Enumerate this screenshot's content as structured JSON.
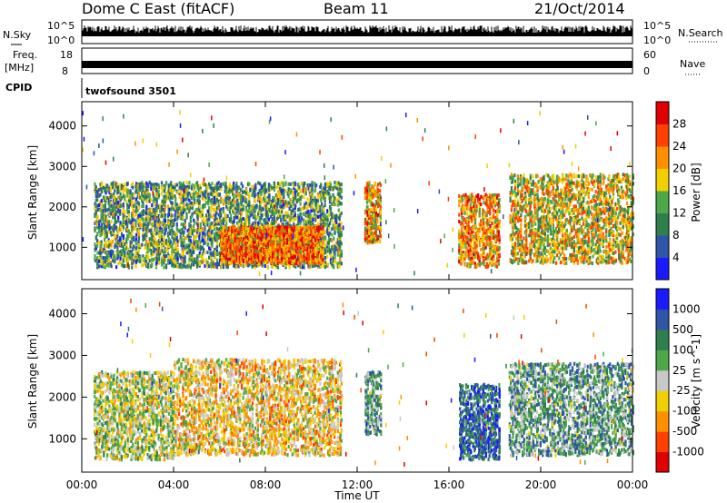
{
  "header": {
    "station": "Dome C East (fitACF)",
    "beam": "Beam 11",
    "date": "21/Oct/2014"
  },
  "strip_labels": {
    "nsky": "N.Sky",
    "nsearch": "N.Search",
    "freq_line1": "Freq.",
    "freq_line2": "[MHz]",
    "nave": "Nave",
    "cpid": "CPID",
    "cpid_value": "twofsound 3501"
  },
  "strip_ticks": {
    "nsky_left_top": "10^5",
    "nsky_left_bottom": "10^0",
    "nsky_right_top": "10^5",
    "nsky_right_bottom": "10^0",
    "freq_left_top": "18",
    "freq_left_bottom": "8",
    "nave_right_top": "60",
    "nave_right_bottom": "0"
  },
  "colors": {
    "power": [
      "#1a1aff",
      "#2e55a8",
      "#2f7f4d",
      "#4da84a",
      "#f0d000",
      "#ff9000",
      "#ff4000",
      "#e00000"
    ],
    "velocity": [
      "#e00000",
      "#ff4000",
      "#ff9000",
      "#f0d000",
      "#c8c8c8",
      "#4da84a",
      "#2f7f4d",
      "#2e55a8",
      "#1a1aff"
    ]
  },
  "chart_data": [
    {
      "type": "heatmap",
      "panel": "power",
      "ylabel": "Slant Range [km]",
      "yticks": [
        "1000",
        "2000",
        "3000",
        "4000"
      ],
      "ylim": [
        200,
        4600
      ],
      "xlim_hours": [
        0,
        24
      ],
      "colorbar": {
        "label": "Power [dB]",
        "ticks": [
          "4",
          "8",
          "12",
          "16",
          "20",
          "24",
          "28"
        ],
        "range": [
          0,
          32
        ]
      },
      "echo_regions": [
        {
          "t": [
            0.5,
            11.3
          ],
          "r": [
            500,
            2600
          ],
          "mean_level": 12
        },
        {
          "t": [
            6.0,
            10.5
          ],
          "r": [
            600,
            1500
          ],
          "mean_level": 24
        },
        {
          "t": [
            12.3,
            13.0
          ],
          "r": [
            1100,
            2600
          ],
          "mean_level": 20
        },
        {
          "t": [
            16.4,
            18.2
          ],
          "r": [
            500,
            2300
          ],
          "mean_level": 22
        },
        {
          "t": [
            18.6,
            24.0
          ],
          "r": [
            600,
            2800
          ],
          "mean_level": 18
        }
      ]
    },
    {
      "type": "heatmap",
      "panel": "velocity",
      "ylabel": "Slant Range [km]",
      "yticks": [
        "1000",
        "2000",
        "3000",
        "4000"
      ],
      "ylim": [
        200,
        4600
      ],
      "xlim_hours": [
        0,
        24
      ],
      "colorbar": {
        "label": "Velocity [m s^-1]",
        "ticks": [
          "1000",
          "500",
          "100",
          "25",
          "-25",
          "-100",
          "-500",
          "-1000"
        ],
        "range": [
          -1000,
          1000
        ]
      },
      "echo_regions": [
        {
          "t": [
            0.5,
            4.0
          ],
          "r": [
            500,
            2600
          ],
          "mean_velocity": 25
        },
        {
          "t": [
            4.0,
            11.3
          ],
          "r": [
            600,
            2900
          ],
          "mean_velocity": -200
        },
        {
          "t": [
            12.3,
            13.0
          ],
          "r": [
            1100,
            2600
          ],
          "mean_velocity": 300
        },
        {
          "t": [
            16.4,
            18.2
          ],
          "r": [
            500,
            2300
          ],
          "mean_velocity": 600
        },
        {
          "t": [
            18.6,
            24.0
          ],
          "r": [
            600,
            2800
          ],
          "mean_velocity": 300
        }
      ]
    }
  ],
  "xaxis": {
    "label": "Time UT",
    "ticks": [
      "00:00",
      "04:00",
      "08:00",
      "12:00",
      "16:00",
      "20:00",
      "00:00"
    ]
  }
}
